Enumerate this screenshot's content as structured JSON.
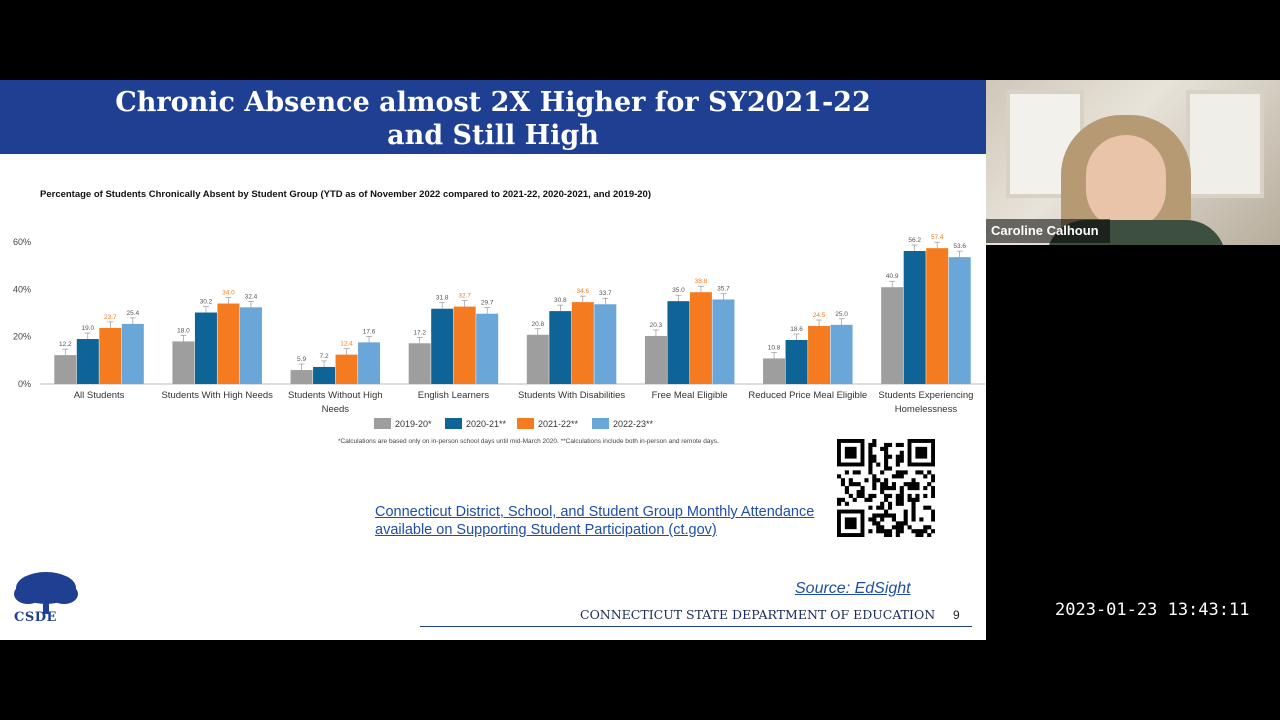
{
  "slide": {
    "title_line1": "Chronic Absence almost 2X Higher for SY2021-22",
    "title_line2": "and Still High",
    "footnote": "*Calculations are based only on in-person school days until mid-March 2020. **Calculations include both in-person and remote days.",
    "link_text": "Connecticut District, School, and Student Group Monthly Attendance available on Supporting Student Participation (ct.gov)",
    "source_text": "Source: EdSight",
    "department": "CONNECTICUT STATE DEPARTMENT OF EDUCATION",
    "page_number": "9",
    "logo_text": "CSDE"
  },
  "chart_data": {
    "type": "bar",
    "title": "Percentage of Students Chronically Absent by Student Group (YTD as of November 2022 compared to 2021-22, 2020-2021, and 2019-20)",
    "categories": [
      [
        "All Students"
      ],
      [
        "Students With High Needs"
      ],
      [
        "Students Without High",
        "Needs"
      ],
      [
        "English Learners"
      ],
      [
        "Students With Disabilities"
      ],
      [
        "Free Meal Eligible"
      ],
      [
        "Reduced Price Meal Eligible"
      ],
      [
        "Students Experiencing",
        "Homelessness"
      ]
    ],
    "series": [
      {
        "name": "2019-20*",
        "color": "#9e9e9e",
        "label_color": "#555555",
        "values": [
          12.2,
          18.0,
          5.9,
          17.2,
          20.8,
          20.3,
          10.8,
          40.9
        ]
      },
      {
        "name": "2020-21**",
        "color": "#0e6496",
        "label_color": "#555555",
        "values": [
          19.0,
          30.2,
          7.2,
          31.8,
          30.8,
          35.0,
          18.6,
          56.2
        ]
      },
      {
        "name": "2021-22**",
        "color": "#f47b20",
        "label_color": "#f47b20",
        "values": [
          23.7,
          34.0,
          12.4,
          32.7,
          34.6,
          38.8,
          24.5,
          57.4
        ]
      },
      {
        "name": "2022-23**",
        "color": "#6aa6d8",
        "label_color": "#555555",
        "values": [
          25.4,
          32.4,
          17.6,
          29.7,
          33.7,
          35.7,
          25.0,
          53.6
        ]
      }
    ],
    "yticks": [
      "0%",
      "20%",
      "40%",
      "60%"
    ],
    "ylim": [
      0,
      60
    ],
    "legend_position": "bottom"
  },
  "video": {
    "participant_name": "Caroline Calhoun",
    "timestamp": "2023-01-23 13:43:11"
  }
}
